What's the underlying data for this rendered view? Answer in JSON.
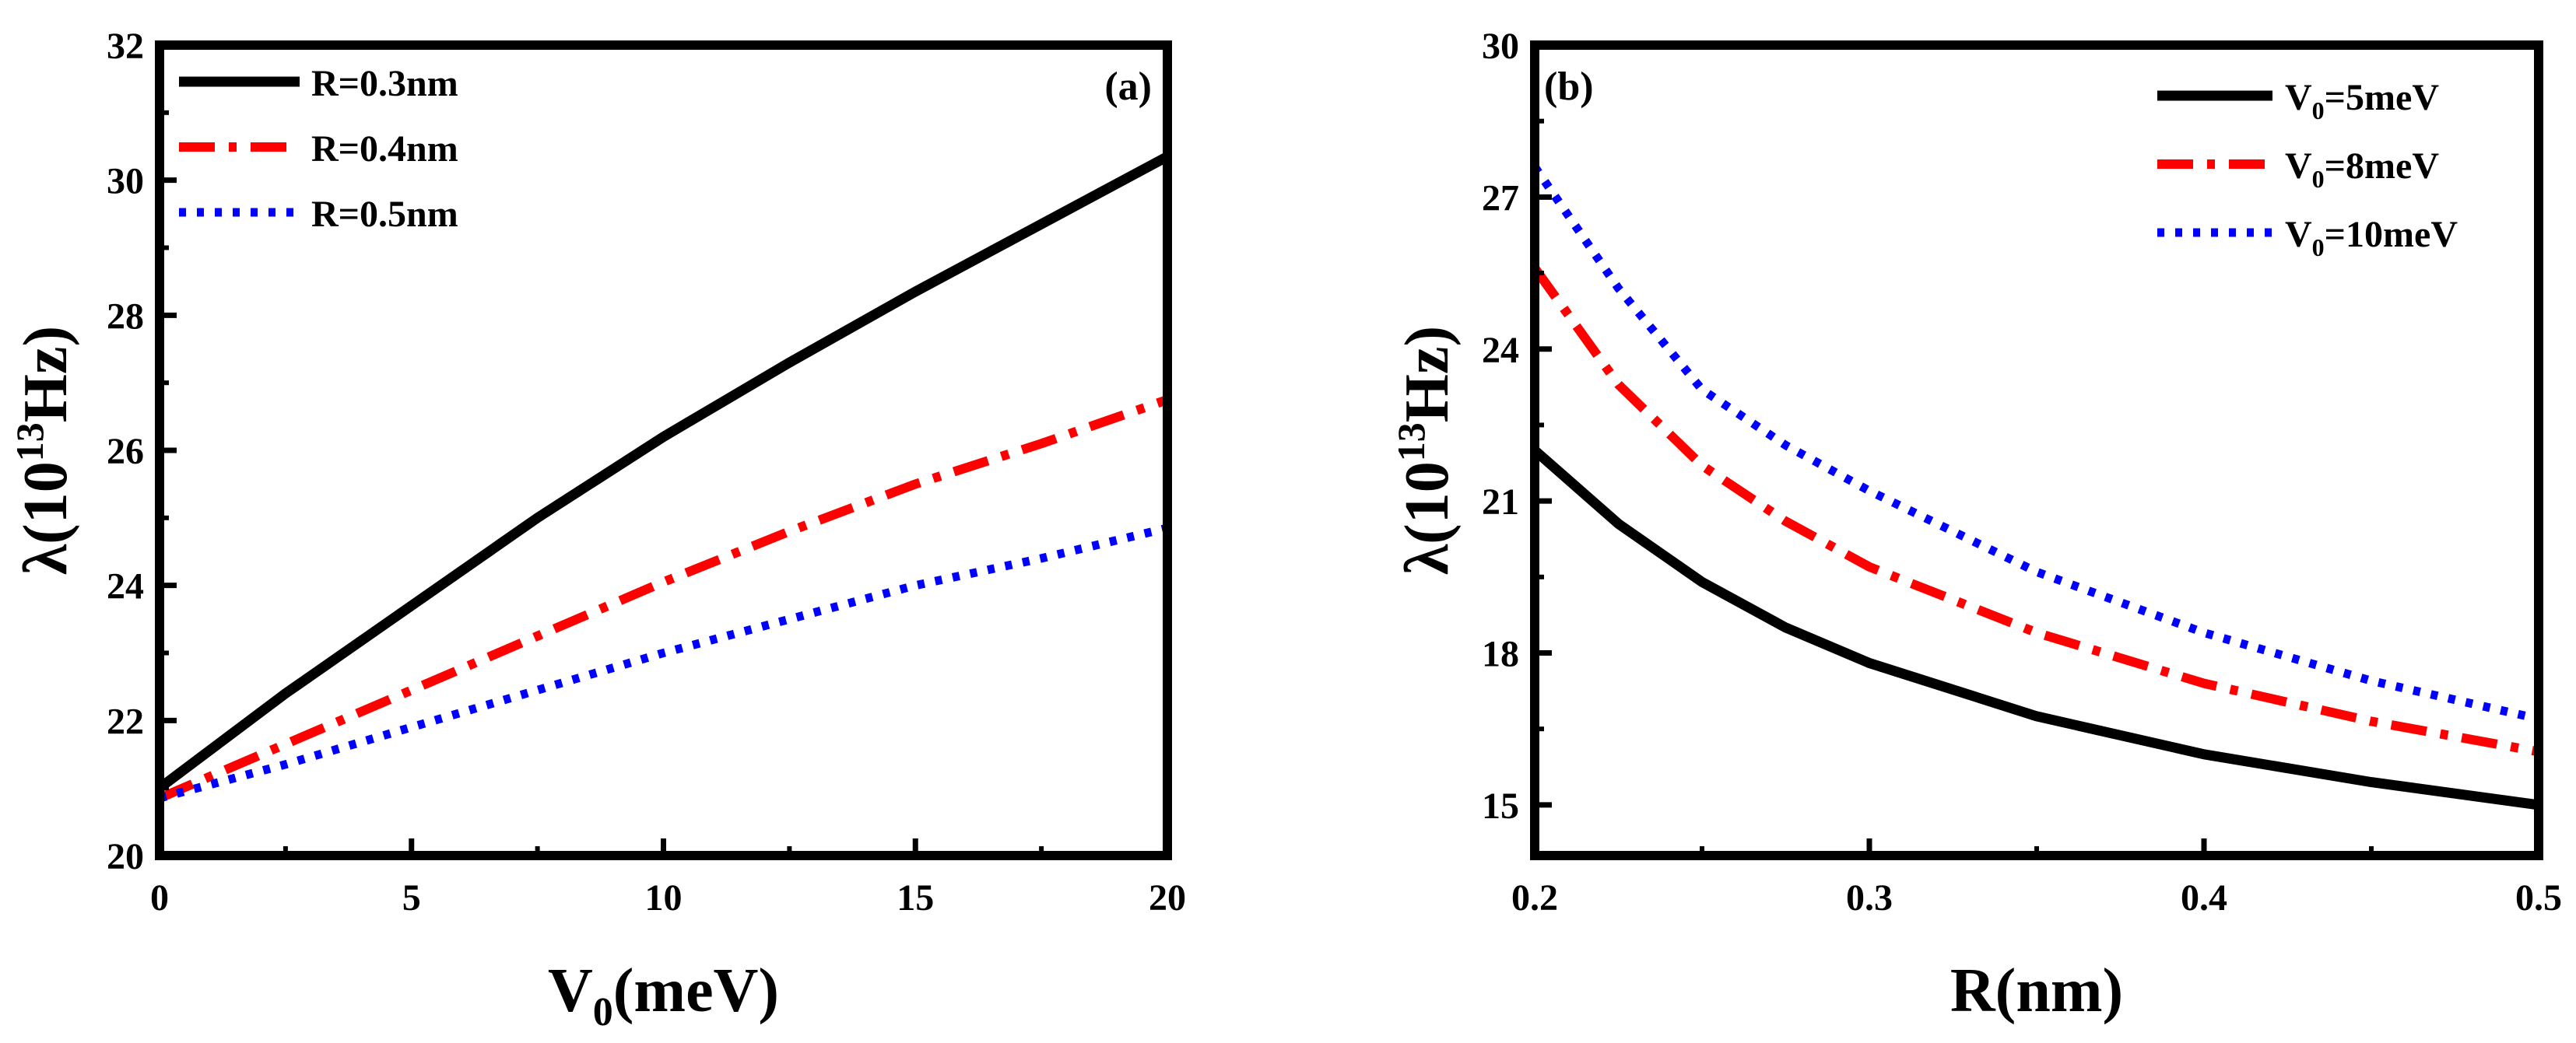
{
  "chart_data": [
    {
      "type": "line",
      "panel_label": "(a)",
      "xlabel_main": "V",
      "xlabel_sub": "0",
      "xlabel_rest": "(meV)",
      "ylabel_lambda": "λ(10",
      "ylabel_sup": "13",
      "ylabel_unit": "Hz)",
      "xlim": [
        0,
        20
      ],
      "ylim": [
        20,
        32
      ],
      "xticks": [
        0,
        5,
        10,
        15,
        20
      ],
      "yticks": [
        20,
        22,
        24,
        26,
        28,
        30,
        32
      ],
      "legend_position": "top-left",
      "series": [
        {
          "name": "R=0.3nm",
          "color": "#000000",
          "dash": "solid",
          "x": [
            0,
            2.5,
            5,
            7.5,
            10,
            12.5,
            15,
            17.5,
            20
          ],
          "y": [
            21.0,
            22.4,
            23.7,
            25.0,
            26.2,
            27.3,
            28.35,
            29.35,
            30.35
          ]
        },
        {
          "name": "R=0.4nm",
          "color": "#ff0000",
          "dash": "dashdot",
          "x": [
            0,
            2.5,
            5,
            7.5,
            10,
            12.5,
            15,
            17.5,
            20
          ],
          "y": [
            20.85,
            21.65,
            22.45,
            23.25,
            24.05,
            24.8,
            25.5,
            26.1,
            26.75
          ]
        },
        {
          "name": "R=0.5nm",
          "color": "#0000ff",
          "dash": "dot",
          "x": [
            0,
            2.5,
            5,
            7.5,
            10,
            12.5,
            15,
            17.5,
            20
          ],
          "y": [
            20.85,
            21.35,
            21.9,
            22.45,
            23.0,
            23.5,
            24.0,
            24.4,
            24.85
          ]
        }
      ]
    },
    {
      "type": "line",
      "panel_label": "(b)",
      "xlabel": "R(nm)",
      "ylabel_lambda": "λ(10",
      "ylabel_sup": "13",
      "ylabel_unit": "Hz)",
      "xlim": [
        0.2,
        0.5
      ],
      "ylim": [
        14,
        30
      ],
      "xticks": [
        0.2,
        0.3,
        0.4,
        0.5
      ],
      "ytick_values": [
        15,
        18,
        21,
        24,
        27,
        30
      ],
      "legend_position": "top-right",
      "series": [
        {
          "name_main": "V",
          "name_sub": "0",
          "name_rest": "=5meV",
          "color": "#000000",
          "dash": "solid",
          "x": [
            0.2,
            0.225,
            0.25,
            0.275,
            0.3,
            0.35,
            0.4,
            0.45,
            0.5
          ],
          "y": [
            22.0,
            20.55,
            19.4,
            18.5,
            17.8,
            16.75,
            16.0,
            15.45,
            15.0
          ]
        },
        {
          "name_main": "V",
          "name_sub": "0",
          "name_rest": "=8meV",
          "color": "#ff0000",
          "dash": "dashdot",
          "x": [
            0.2,
            0.225,
            0.25,
            0.275,
            0.3,
            0.35,
            0.4,
            0.45,
            0.5
          ],
          "y": [
            25.6,
            23.3,
            21.7,
            20.6,
            19.7,
            18.4,
            17.4,
            16.65,
            16.05
          ]
        },
        {
          "name_main": "V",
          "name_sub": "0",
          "name_rest": "=10meV",
          "color": "#0000ff",
          "dash": "dot",
          "x": [
            0.2,
            0.225,
            0.25,
            0.275,
            0.3,
            0.35,
            0.4,
            0.45,
            0.5
          ],
          "y": [
            27.6,
            25.2,
            23.2,
            22.1,
            21.2,
            19.6,
            18.4,
            17.45,
            16.7
          ]
        }
      ]
    }
  ]
}
